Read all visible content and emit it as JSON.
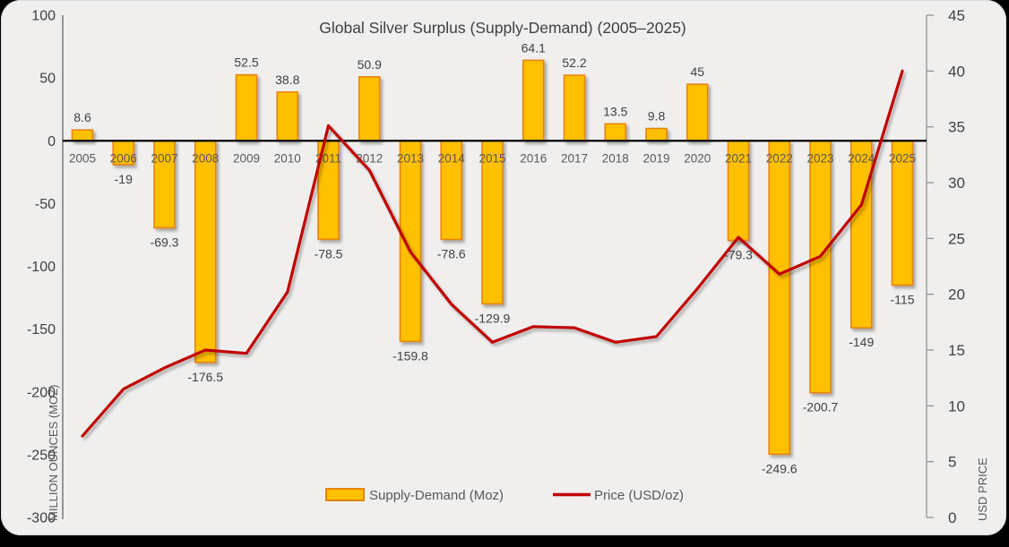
{
  "title": "Global Silver Surplus (Supply-Demand) (2005–2025)",
  "chart_data": {
    "type": "combo-bar-line",
    "title": "Global Silver Surplus (Supply-Demand) (2005–2025)",
    "categories": [
      "2005",
      "2006",
      "2007",
      "2008",
      "2009",
      "2010",
      "2011",
      "2012",
      "2013",
      "2014",
      "2015",
      "2016",
      "2017",
      "2018",
      "2019",
      "2020",
      "2021",
      "2022",
      "2023",
      "2024",
      "2025"
    ],
    "series": [
      {
        "name": "Supply-Demand (Moz)",
        "type": "bar",
        "axis": "left",
        "values": [
          8.6,
          -19,
          -69.3,
          -176.5,
          52.5,
          38.8,
          -78.5,
          50.9,
          -159.8,
          -78.6,
          -129.9,
          64.1,
          52.2,
          13.5,
          9.8,
          45,
          -79.3,
          -249.6,
          -200.7,
          -149,
          -115
        ],
        "labels": [
          "8.6",
          "-19",
          "-69.3",
          "-176.5",
          "52.5",
          "38.8",
          "-78.5",
          "50.9",
          "-159.8",
          "-78.6",
          "-129.9",
          "64.1",
          "52.2",
          "13.5",
          "9.8",
          "45",
          "-79.3",
          "-249.6",
          "-200.7",
          "-149",
          "-115"
        ]
      },
      {
        "name": "Price (USD/oz)",
        "type": "line",
        "axis": "right",
        "values": [
          7.3,
          11.5,
          13.4,
          15.0,
          14.7,
          20.2,
          35.1,
          31.1,
          23.8,
          19.1,
          15.7,
          17.1,
          17.0,
          15.7,
          16.2,
          20.5,
          25.1,
          21.8,
          23.4,
          28.0,
          40.0
        ]
      }
    ],
    "left_axis": {
      "label": "MILLION OUNCES (MOZ)",
      "min": -300,
      "max": 100,
      "step": 50,
      "ticks": [
        "100",
        "50",
        "0",
        "-50",
        "-100",
        "-150",
        "-200",
        "-250",
        "-300"
      ]
    },
    "right_axis": {
      "label": "USD PRICE",
      "min": 0,
      "max": 45,
      "step": 5,
      "ticks": [
        "45",
        "40",
        "35",
        "30",
        "25",
        "20",
        "15",
        "10",
        "5",
        "0"
      ]
    },
    "legend": {
      "position": "bottom",
      "entries": [
        {
          "label": "Supply-Demand (Moz)",
          "swatch": "bar"
        },
        {
          "label": "Price (USD/oz)",
          "swatch": "line"
        }
      ]
    },
    "grid": "off"
  },
  "style": {
    "bar_fill": "#FFC000",
    "bar_border": "#E8830D",
    "line_color": "#C00000",
    "zero_line_color": "#000000",
    "axis_line_color": "#8C8C8C",
    "tick_text_color": "#404040",
    "year_text_color": "#595959",
    "data_label_color": "#404040",
    "axis_title_color": "#595959",
    "legend_text_color": "#595959",
    "title_color": "#404040",
    "panel_bg": "#F0EFEE",
    "outer_bg": "#000000"
  }
}
